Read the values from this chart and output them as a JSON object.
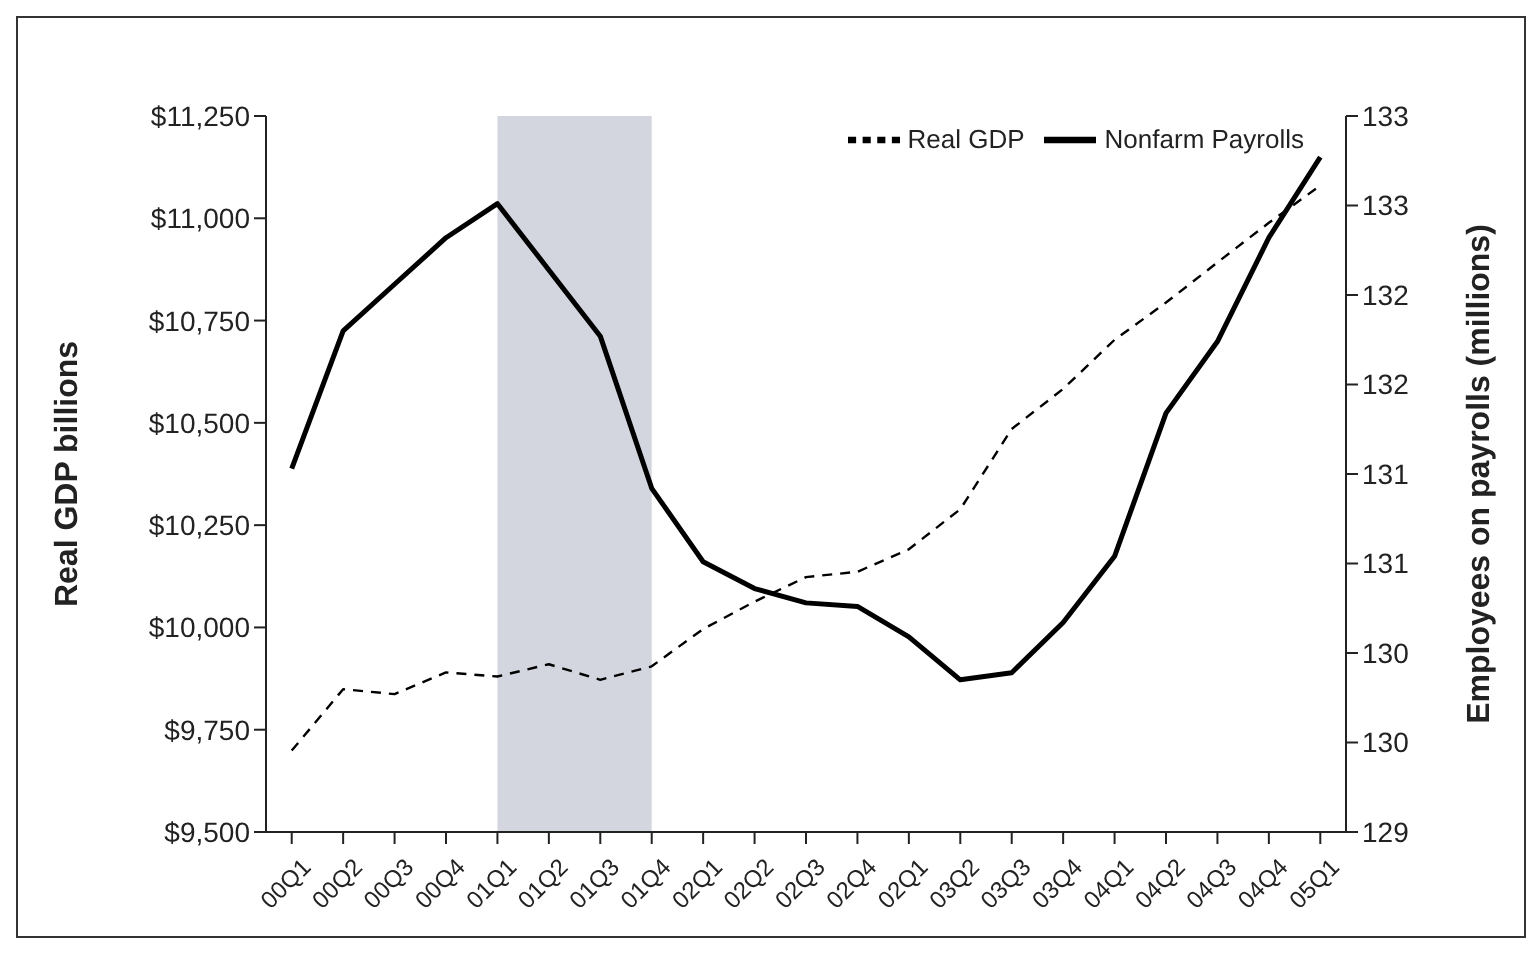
{
  "chart_data": {
    "type": "line",
    "xlabel": null,
    "ylabel": "Real GDP billions",
    "y2label": "Employees on payrolls (millions)",
    "categories": [
      "00Q1",
      "00Q2",
      "00Q3",
      "00Q4",
      "01Q1",
      "01Q2",
      "01Q3",
      "01Q4",
      "02Q1",
      "02Q2",
      "02Q3",
      "02Q4",
      "02Q1",
      "03Q2",
      "03Q3",
      "03Q4",
      "04Q1",
      "04Q2",
      "04Q3",
      "04Q4",
      "05Q1"
    ],
    "series": [
      {
        "name": "Real GDP",
        "color": "#000000",
        "line_style": "dashed",
        "values": [
          9699,
          9849,
          9837,
          9890,
          9880,
          9910,
          9872,
          9905,
          9996,
          10063,
          10123,
          10136,
          10191,
          10289,
          10485,
          10583,
          10703,
          10794,
          10892,
          10989,
          11080
        ]
      },
      {
        "name": "Nonfarm Payrolls",
        "color": "#000000",
        "line_style": "solid",
        "axis": "y2",
        "values": [
          131.03,
          131.8,
          132.06,
          132.32,
          132.51,
          132.14,
          131.77,
          130.92,
          130.51,
          130.36,
          130.28,
          130.26,
          130.09,
          129.85,
          129.89,
          130.17,
          130.54,
          131.34,
          131.74,
          132.32,
          132.77
        ]
      }
    ],
    "ylim": [
      9500,
      11250
    ],
    "yticks": [
      {
        "value": 9500,
        "label": "$9,500"
      },
      {
        "value": 9750,
        "label": "$9,750"
      },
      {
        "value": 10000,
        "label": "$10,000"
      },
      {
        "value": 10250,
        "label": "$10,250"
      },
      {
        "value": 10500,
        "label": "$10,500"
      },
      {
        "value": 10750,
        "label": "$10,750"
      },
      {
        "value": 11000,
        "label": "$11,000"
      },
      {
        "value": 11250,
        "label": "$11,250"
      }
    ],
    "y2lim": [
      129,
      133
    ],
    "y2ticks": [
      129,
      {
        "value": 129.5,
        "label": "130"
      },
      130,
      {
        "value": 130.5,
        "label": "131"
      },
      131,
      {
        "value": 131.5,
        "label": "132"
      },
      132,
      {
        "value": 132.5,
        "label": "133"
      },
      133
    ],
    "bands": [
      {
        "axis": "x",
        "from": "01Q1",
        "to": "01Q4",
        "color": "#d3d6de"
      }
    ],
    "legend": "top right",
    "grid": false,
    "marker": "none"
  }
}
